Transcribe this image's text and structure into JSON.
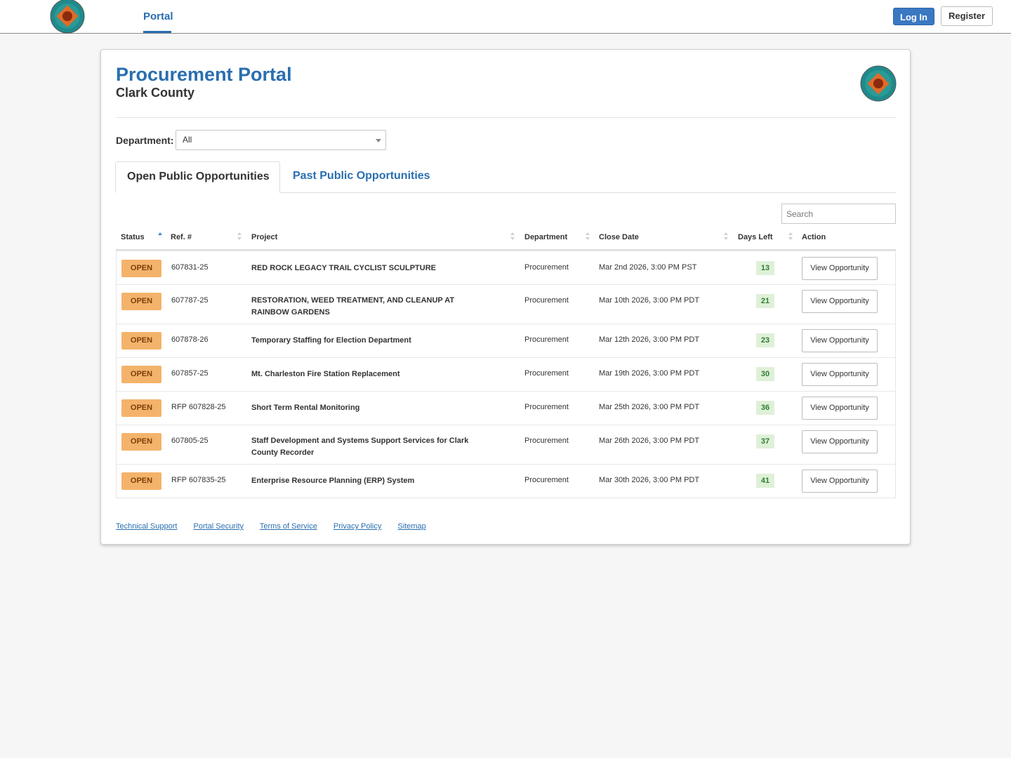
{
  "nav": {
    "portal_label": "Portal",
    "login_label": "Log In",
    "register_label": "Register"
  },
  "header": {
    "title": "Procurement Portal",
    "subtitle": "Clark County"
  },
  "filters": {
    "department_label": "Department:",
    "department_value": "All"
  },
  "tabs": [
    {
      "label": "Open Public Opportunities",
      "active": true
    },
    {
      "label": "Past Public Opportunities",
      "active": false
    }
  ],
  "search": {
    "placeholder": "Search"
  },
  "table": {
    "headers": [
      "Status",
      "Ref. #",
      "Project",
      "Department",
      "Close Date",
      "Days Left",
      "Action"
    ],
    "rows": [
      {
        "status": "OPEN",
        "ref": "607831-25",
        "project": "RED ROCK LEGACY TRAIL CYCLIST SCULPTURE",
        "department": "Procurement",
        "close_date": "Mar 2nd 2026, 3:00 PM PST",
        "days_left": "13",
        "action": "View Opportunity"
      },
      {
        "status": "OPEN",
        "ref": "607787-25",
        "project": "RESTORATION, WEED TREATMENT, AND CLEANUP AT RAINBOW GARDENS",
        "department": "Procurement",
        "close_date": "Mar 10th 2026, 3:00 PM PDT",
        "days_left": "21",
        "action": "View Opportunity"
      },
      {
        "status": "OPEN",
        "ref": "607878-26",
        "project": "Temporary Staffing for Election Department",
        "department": "Procurement",
        "close_date": "Mar 12th 2026, 3:00 PM PDT",
        "days_left": "23",
        "action": "View Opportunity"
      },
      {
        "status": "OPEN",
        "ref": "607857-25",
        "project": "Mt. Charleston Fire Station Replacement",
        "department": "Procurement",
        "close_date": "Mar 19th 2026, 3:00 PM PDT",
        "days_left": "30",
        "action": "View Opportunity"
      },
      {
        "status": "OPEN",
        "ref": "RFP 607828-25",
        "project": "Short Term Rental Monitoring",
        "department": "Procurement",
        "close_date": "Mar 25th 2026, 3:00 PM PDT",
        "days_left": "36",
        "action": "View Opportunity"
      },
      {
        "status": "OPEN",
        "ref": "607805-25",
        "project": "Staff Development and Systems Support Services for Clark County Recorder",
        "department": "Procurement",
        "close_date": "Mar 26th 2026, 3:00 PM PDT",
        "days_left": "37",
        "action": "View Opportunity"
      },
      {
        "status": "OPEN",
        "ref": "RFP 607835-25",
        "project": "Enterprise Resource Planning (ERP) System",
        "department": "Procurement",
        "close_date": "Mar 30th 2026, 3:00 PM PDT",
        "days_left": "41",
        "action": "View Opportunity"
      }
    ]
  },
  "footer": {
    "links": [
      "Technical Support",
      "Portal Security",
      "Terms of Service",
      "Privacy Policy",
      "Sitemap"
    ]
  },
  "icons": {
    "logo": "county-seal-icon",
    "dropdown": "caret-down-icon",
    "sort": "sort-icon"
  },
  "colors": {
    "brand_blue": "#2a6eb0",
    "open_badge": "#f4b36b",
    "days_badge": "#dff0d8"
  }
}
